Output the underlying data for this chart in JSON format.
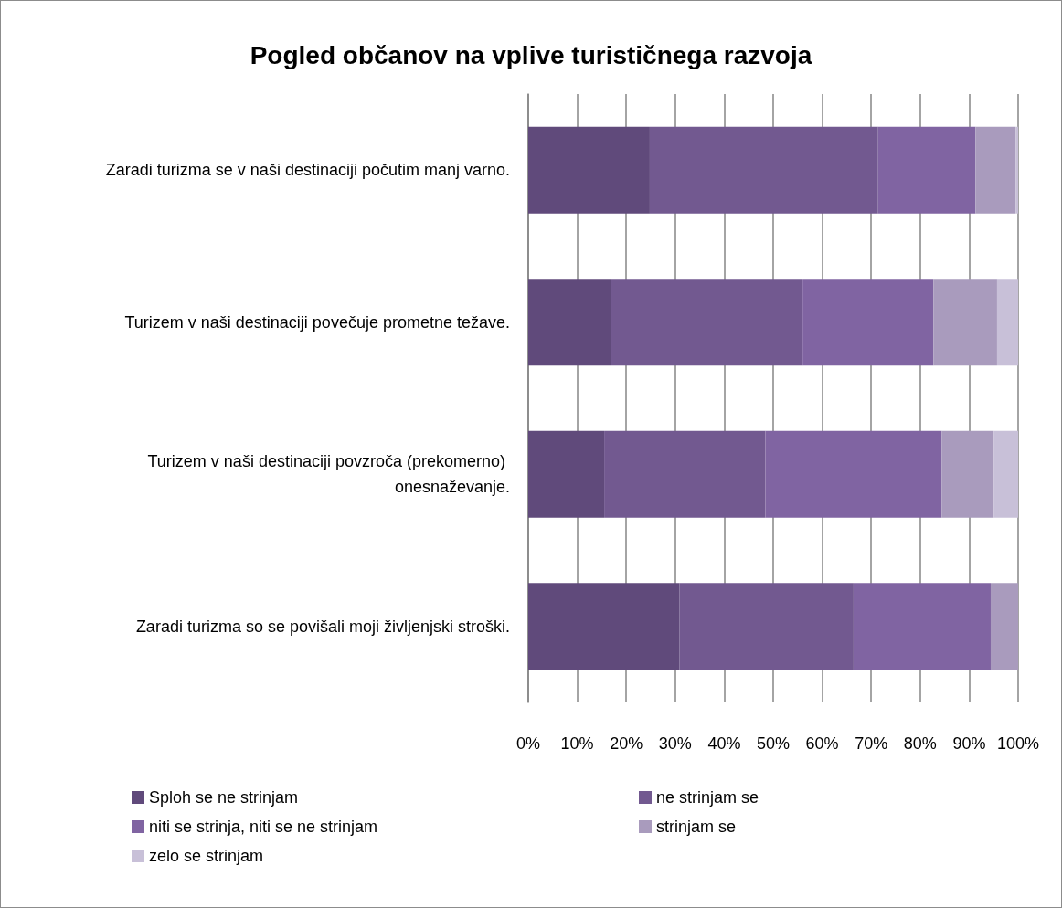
{
  "chart_data": {
    "type": "bar",
    "orientation": "horizontal",
    "stacked": true,
    "title": "Pogled občanov na vplive turističnega razvoja",
    "categories": [
      "Zaradi turizma se v naši destinaciji počutim manj varno.",
      "Turizem v naši destinaciji povečuje prometne težave.",
      "Turizem v naši destinaciji povzroča (prekomerno) onesnaževanje.",
      "Zaradi turizma so se povišali moji življenjski stroški."
    ],
    "series": [
      {
        "name": "Sploh se ne strinjam",
        "color": "#604a7b",
        "values": [
          24.8,
          16.8,
          15.5,
          30.9
        ]
      },
      {
        "name": "ne strinjam se",
        "color": "#725990",
        "values": [
          46.6,
          39.2,
          32.9,
          35.5
        ]
      },
      {
        "name": "niti se strinja, niti se ne strinjam",
        "color": "#8064a2",
        "values": [
          19.9,
          26.7,
          36.0,
          28.0
        ]
      },
      {
        "name": "strinjam se",
        "color": "#a99bbd",
        "values": [
          8.2,
          13.0,
          10.6,
          5.6
        ]
      },
      {
        "name": "zelo se strinjam",
        "color": "#c8c0d8",
        "values": [
          0.5,
          4.3,
          5.0,
          0
        ]
      }
    ],
    "xlim": [
      0,
      100
    ],
    "xticks": [
      {
        "value": 0,
        "label": "0%"
      },
      {
        "value": 10,
        "label": "10%"
      },
      {
        "value": 20,
        "label": "20%"
      },
      {
        "value": 30,
        "label": "30%"
      },
      {
        "value": 40,
        "label": "40%"
      },
      {
        "value": 50,
        "label": "50%"
      },
      {
        "value": 60,
        "label": "60%"
      },
      {
        "value": 70,
        "label": "70%"
      },
      {
        "value": 80,
        "label": "80%"
      },
      {
        "value": 90,
        "label": "90%"
      },
      {
        "value": 100,
        "label": "100%"
      }
    ],
    "grid": "x",
    "legend": "bottom"
  }
}
